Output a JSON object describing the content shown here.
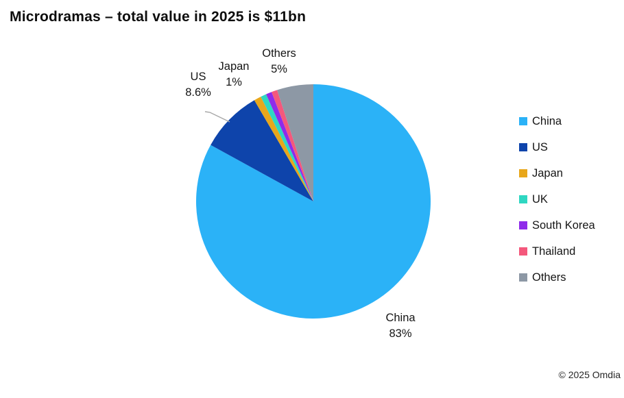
{
  "title": "Microdramas – total value in 2025 is $11bn",
  "footer": {
    "copyright": "© 2025 Omdia"
  },
  "chart_data": {
    "type": "pie",
    "title": "Microdramas – total value in 2025 is $11bn",
    "categories": [
      "China",
      "US",
      "Japan",
      "UK",
      "South Korea",
      "Thailand",
      "Others"
    ],
    "values": [
      83,
      8.6,
      1,
      0.8,
      0.8,
      0.8,
      5
    ],
    "unit": "%",
    "colors": [
      "#2BB2F7",
      "#0E44AB",
      "#E8A71B",
      "#2FD7C2",
      "#8F2BEA",
      "#F4587C",
      "#8D98A5"
    ],
    "start_angle_deg": 0,
    "direction": "clockwise",
    "legend_position": "right",
    "leader_line_color": "#A6A6A6",
    "shown_data_labels": {
      "china": {
        "name": "China",
        "pct": "83%"
      },
      "us": {
        "name": "US",
        "pct": "8.6%"
      },
      "japan": {
        "name": "Japan",
        "pct": "1%"
      },
      "others": {
        "name": "Others",
        "pct": "5%"
      }
    }
  },
  "legend": {
    "items": [
      {
        "label": "China"
      },
      {
        "label": "US"
      },
      {
        "label": "Japan"
      },
      {
        "label": "UK"
      },
      {
        "label": "South Korea"
      },
      {
        "label": "Thailand"
      },
      {
        "label": "Others"
      }
    ]
  }
}
